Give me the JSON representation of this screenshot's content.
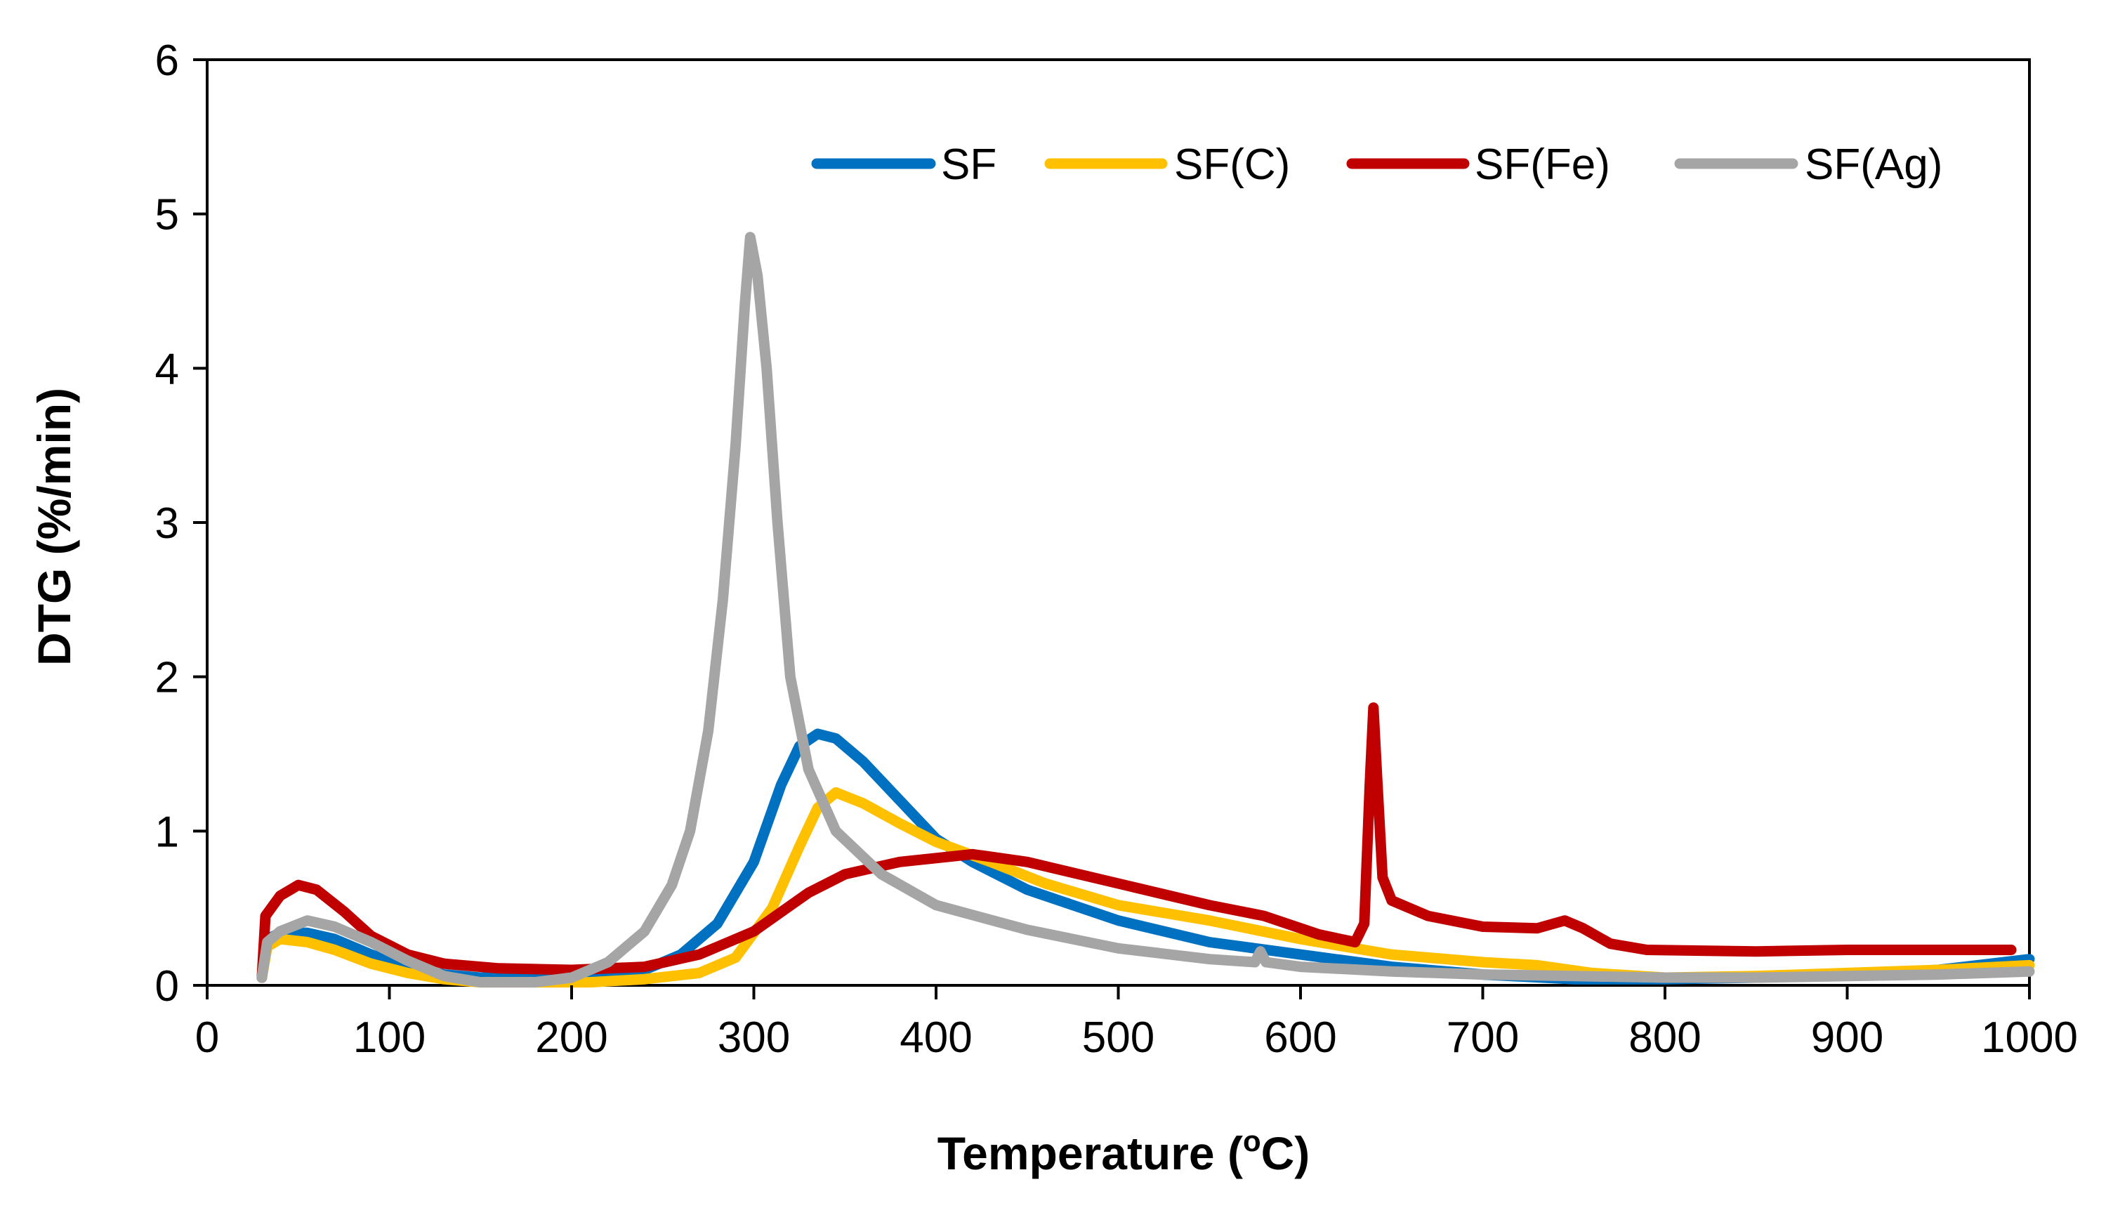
{
  "chart_data": {
    "type": "line",
    "title": "",
    "xlabel": "Temperature (",
    "xlabel_sup": "o",
    "xlabel_suffix": "C)",
    "ylabel": "DTG (%/min)",
    "xlim": [
      0,
      1000
    ],
    "ylim": [
      0,
      6
    ],
    "xticks": [
      0,
      100,
      200,
      300,
      400,
      500,
      600,
      700,
      800,
      900,
      1000
    ],
    "yticks": [
      0,
      1,
      2,
      3,
      4,
      5,
      6
    ],
    "grid": false,
    "legend": "top-right",
    "series": [
      {
        "name": "SF",
        "color": "#0070C0",
        "points": [
          [
            30,
            0.05
          ],
          [
            33,
            0.3
          ],
          [
            40,
            0.34
          ],
          [
            55,
            0.34
          ],
          [
            70,
            0.3
          ],
          [
            90,
            0.2
          ],
          [
            110,
            0.12
          ],
          [
            130,
            0.07
          ],
          [
            150,
            0.05
          ],
          [
            180,
            0.05
          ],
          [
            210,
            0.06
          ],
          [
            240,
            0.1
          ],
          [
            260,
            0.2
          ],
          [
            280,
            0.4
          ],
          [
            300,
            0.8
          ],
          [
            315,
            1.3
          ],
          [
            325,
            1.55
          ],
          [
            335,
            1.63
          ],
          [
            345,
            1.6
          ],
          [
            360,
            1.45
          ],
          [
            380,
            1.2
          ],
          [
            400,
            0.95
          ],
          [
            420,
            0.8
          ],
          [
            450,
            0.62
          ],
          [
            500,
            0.42
          ],
          [
            550,
            0.28
          ],
          [
            600,
            0.2
          ],
          [
            650,
            0.12
          ],
          [
            700,
            0.07
          ],
          [
            750,
            0.04
          ],
          [
            800,
            0.04
          ],
          [
            850,
            0.05
          ],
          [
            900,
            0.07
          ],
          [
            950,
            0.1
          ],
          [
            1000,
            0.17
          ]
        ]
      },
      {
        "name": "SF(C)",
        "color": "#FFC000",
        "points": [
          [
            30,
            0.05
          ],
          [
            33,
            0.25
          ],
          [
            40,
            0.3
          ],
          [
            55,
            0.28
          ],
          [
            70,
            0.23
          ],
          [
            90,
            0.14
          ],
          [
            110,
            0.08
          ],
          [
            130,
            0.04
          ],
          [
            150,
            0.02
          ],
          [
            180,
            0.02
          ],
          [
            210,
            0.02
          ],
          [
            240,
            0.04
          ],
          [
            270,
            0.08
          ],
          [
            290,
            0.18
          ],
          [
            310,
            0.5
          ],
          [
            325,
            0.9
          ],
          [
            335,
            1.15
          ],
          [
            345,
            1.25
          ],
          [
            360,
            1.18
          ],
          [
            380,
            1.05
          ],
          [
            400,
            0.93
          ],
          [
            430,
            0.8
          ],
          [
            460,
            0.66
          ],
          [
            500,
            0.52
          ],
          [
            550,
            0.42
          ],
          [
            600,
            0.3
          ],
          [
            650,
            0.2
          ],
          [
            700,
            0.15
          ],
          [
            730,
            0.13
          ],
          [
            760,
            0.08
          ],
          [
            800,
            0.05
          ],
          [
            850,
            0.06
          ],
          [
            900,
            0.08
          ],
          [
            950,
            0.1
          ],
          [
            1000,
            0.13
          ]
        ]
      },
      {
        "name": "SF(Fe)",
        "color": "#C00000",
        "points": [
          [
            30,
            0.05
          ],
          [
            32,
            0.45
          ],
          [
            40,
            0.58
          ],
          [
            50,
            0.65
          ],
          [
            60,
            0.62
          ],
          [
            75,
            0.48
          ],
          [
            90,
            0.32
          ],
          [
            110,
            0.2
          ],
          [
            130,
            0.14
          ],
          [
            160,
            0.11
          ],
          [
            200,
            0.1
          ],
          [
            240,
            0.12
          ],
          [
            270,
            0.2
          ],
          [
            300,
            0.35
          ],
          [
            330,
            0.6
          ],
          [
            350,
            0.72
          ],
          [
            380,
            0.8
          ],
          [
            420,
            0.85
          ],
          [
            450,
            0.8
          ],
          [
            500,
            0.66
          ],
          [
            550,
            0.52
          ],
          [
            580,
            0.45
          ],
          [
            610,
            0.33
          ],
          [
            630,
            0.28
          ],
          [
            635,
            0.4
          ],
          [
            638,
            1.3
          ],
          [
            640,
            1.8
          ],
          [
            642,
            1.35
          ],
          [
            645,
            0.7
          ],
          [
            650,
            0.55
          ],
          [
            670,
            0.45
          ],
          [
            700,
            0.38
          ],
          [
            730,
            0.37
          ],
          [
            745,
            0.42
          ],
          [
            755,
            0.37
          ],
          [
            770,
            0.27
          ],
          [
            790,
            0.23
          ],
          [
            850,
            0.22
          ],
          [
            900,
            0.23
          ],
          [
            950,
            0.23
          ],
          [
            990,
            0.23
          ]
        ]
      },
      {
        "name": "SF(Ag)",
        "color": "#A5A5A5",
        "points": [
          [
            30,
            0.05
          ],
          [
            33,
            0.28
          ],
          [
            40,
            0.35
          ],
          [
            55,
            0.42
          ],
          [
            70,
            0.38
          ],
          [
            90,
            0.28
          ],
          [
            110,
            0.16
          ],
          [
            130,
            0.06
          ],
          [
            150,
            0.02
          ],
          [
            180,
            0.02
          ],
          [
            200,
            0.05
          ],
          [
            220,
            0.15
          ],
          [
            240,
            0.35
          ],
          [
            255,
            0.65
          ],
          [
            265,
            1.0
          ],
          [
            275,
            1.65
          ],
          [
            283,
            2.5
          ],
          [
            290,
            3.5
          ],
          [
            295,
            4.4
          ],
          [
            298,
            4.85
          ],
          [
            302,
            4.6
          ],
          [
            307,
            4.0
          ],
          [
            313,
            3.0
          ],
          [
            320,
            2.0
          ],
          [
            330,
            1.4
          ],
          [
            345,
            1.0
          ],
          [
            370,
            0.72
          ],
          [
            400,
            0.52
          ],
          [
            450,
            0.36
          ],
          [
            500,
            0.24
          ],
          [
            550,
            0.17
          ],
          [
            575,
            0.15
          ],
          [
            578,
            0.22
          ],
          [
            581,
            0.15
          ],
          [
            600,
            0.12
          ],
          [
            650,
            0.09
          ],
          [
            700,
            0.07
          ],
          [
            750,
            0.06
          ],
          [
            800,
            0.05
          ],
          [
            850,
            0.05
          ],
          [
            900,
            0.06
          ],
          [
            950,
            0.07
          ],
          [
            1000,
            0.09
          ]
        ]
      }
    ]
  }
}
